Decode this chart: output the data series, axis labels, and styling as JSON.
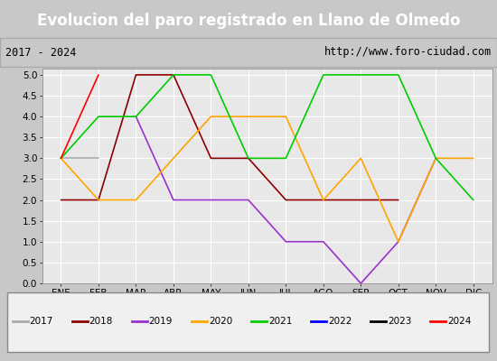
{
  "title": "Evolucion del paro registrado en Llano de Olmedo",
  "subtitle_left": "2017 - 2024",
  "subtitle_right": "http://www.foro-ciudad.com",
  "months": [
    "ENE",
    "FEB",
    "MAR",
    "ABR",
    "MAY",
    "JUN",
    "JUL",
    "AGO",
    "SEP",
    "OCT",
    "NOV",
    "DIC"
  ],
  "series": {
    "2017": {
      "color": "#aaaaaa",
      "linewidth": 1.2,
      "data": [
        3,
        3,
        null,
        null,
        null,
        null,
        null,
        null,
        null,
        null,
        null,
        null
      ]
    },
    "2018": {
      "color": "#8b0000",
      "linewidth": 1.2,
      "data": [
        2,
        2,
        5,
        5,
        3,
        3,
        2,
        2,
        2,
        2,
        null,
        null
      ]
    },
    "2019": {
      "color": "#9932cc",
      "linewidth": 1.2,
      "data": [
        null,
        null,
        4,
        2,
        2,
        2,
        1,
        1,
        0,
        1,
        3,
        null
      ]
    },
    "2020": {
      "color": "#ffa500",
      "linewidth": 1.2,
      "data": [
        3,
        2,
        2,
        3,
        4,
        4,
        4,
        2,
        3,
        1,
        3,
        3
      ]
    },
    "2021": {
      "color": "#00cc00",
      "linewidth": 1.2,
      "data": [
        3,
        4,
        4,
        5,
        5,
        3,
        3,
        5,
        5,
        5,
        3,
        2
      ]
    },
    "2022": {
      "color": "#0000ff",
      "linewidth": 1.2,
      "data": [
        null,
        null,
        null,
        null,
        null,
        null,
        null,
        null,
        null,
        null,
        null,
        null
      ]
    },
    "2023": {
      "color": "#000000",
      "linewidth": 1.2,
      "data": [
        null,
        null,
        null,
        null,
        null,
        null,
        null,
        null,
        null,
        null,
        null,
        null
      ]
    },
    "2024": {
      "color": "#ff0000",
      "linewidth": 1.2,
      "data": [
        3,
        5,
        null,
        null,
        null,
        null,
        null,
        null,
        null,
        null,
        null,
        null
      ]
    }
  },
  "ylim": [
    0,
    5.15
  ],
  "yticks": [
    0.0,
    0.5,
    1.0,
    1.5,
    2.0,
    2.5,
    3.0,
    3.5,
    4.0,
    4.5,
    5.0
  ],
  "fig_bg": "#c8c8c8",
  "plot_bg": "#e8e8e8",
  "title_bg": "#4f81bd",
  "title_color": "#ffffff",
  "title_fontsize": 12,
  "subtitle_bg": "#d9d9d9",
  "subtitle_fontsize": 8.5,
  "legend_years": [
    "2017",
    "2018",
    "2019",
    "2020",
    "2021",
    "2022",
    "2023",
    "2024"
  ],
  "legend_colors": [
    "#aaaaaa",
    "#8b0000",
    "#9932cc",
    "#ffa500",
    "#00cc00",
    "#0000ff",
    "#000000",
    "#ff0000"
  ]
}
